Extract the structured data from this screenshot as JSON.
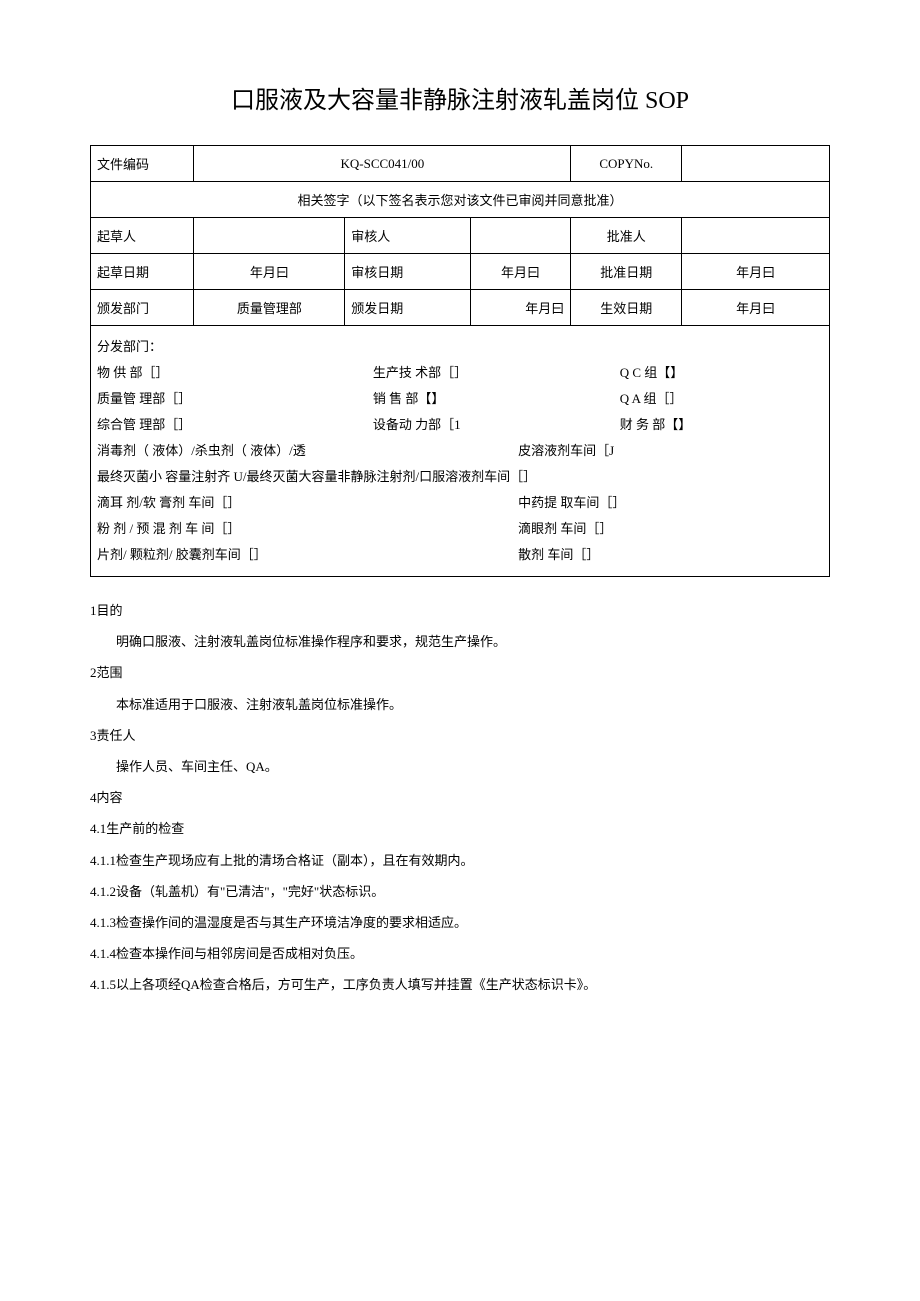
{
  "title": "口服液及大容量非静脉注射液轧盖岗位 SOP",
  "header": {
    "doc_code_label": "文件编码",
    "doc_code": "KQ-SCC041/00",
    "copy_no_label": "COPYNo.",
    "copy_no": "",
    "sig_header": "相关签字（以下签名表示您对该文件已审阅并同意批准）",
    "drafter_label": "起草人",
    "reviewer_label": "审核人",
    "approver_label": "批准人",
    "draft_date_label": "起草日期",
    "review_date_label": "审核日期",
    "approve_date_label": "批准日期",
    "issue_dept_label": "颁发部门",
    "issue_dept_value": "质量管理部",
    "issue_date_label": "颁发日期",
    "effective_date_label": "生效日期",
    "date_placeholder": "年月曰"
  },
  "distribution": {
    "label": "分发部门：",
    "lines": [
      [
        "物    供       部［］",
        "生产技       术部［］",
        "Q     C       组【】"
      ],
      [
        "质量管      理部［］",
        "销    售    部【】",
        "Q     A       组［］"
      ],
      [
        "综合管      理部［］",
        "设备动     力部［1",
        "财    务      部【】"
      ],
      [
        "消毒剂（    液体）/杀虫剂（       液体）/透",
        "皮溶液剂车间［J",
        ""
      ],
      [
        "最终灭菌小   容量注射齐 U/最终灭菌大容量非静脉注射剂/口服溶液剂车间［］",
        "",
        ""
      ],
      [
        "滴耳      剂/软        膏剂     车间［］",
        "中药提       取车间［］",
        ""
      ],
      [
        "粉   剂   /   预   混   剂   车   间［］",
        "滴眼剂    车间［］",
        ""
      ],
      [
        "片剂/    颗粒剂/            胶囊剂车间［］",
        "散剂   车间［］",
        ""
      ]
    ]
  },
  "sections": {
    "s1_h": "1目的",
    "s1_p": "明确口服液、注射液轧盖岗位标准操作程序和要求，规范生产操作。",
    "s2_h": "2范围",
    "s2_p": "本标准适用于口服液、注射液轧盖岗位标准操作。",
    "s3_h": "3责任人",
    "s3_p": "操作人员、车间主任、QA。",
    "s4_h": "4内容",
    "s4_1": "4.1生产前的检查",
    "s4_1_1": "4.1.1检查生产现场应有上批的清场合格证（副本），且在有效期内。",
    "s4_1_2": "4.1.2设备（轧盖机）有\"已清洁\"，\"完好\"状态标识。",
    "s4_1_3": "4.1.3检查操作间的温湿度是否与其生产环境洁净度的要求相适应。",
    "s4_1_4": "4.1.4检查本操作间与相邻房间是否成相对负压。",
    "s4_1_5": "4.1.5以上各项经QA检查合格后，方可生产，工序负责人填写并挂置《生产状态标识卡》。"
  }
}
